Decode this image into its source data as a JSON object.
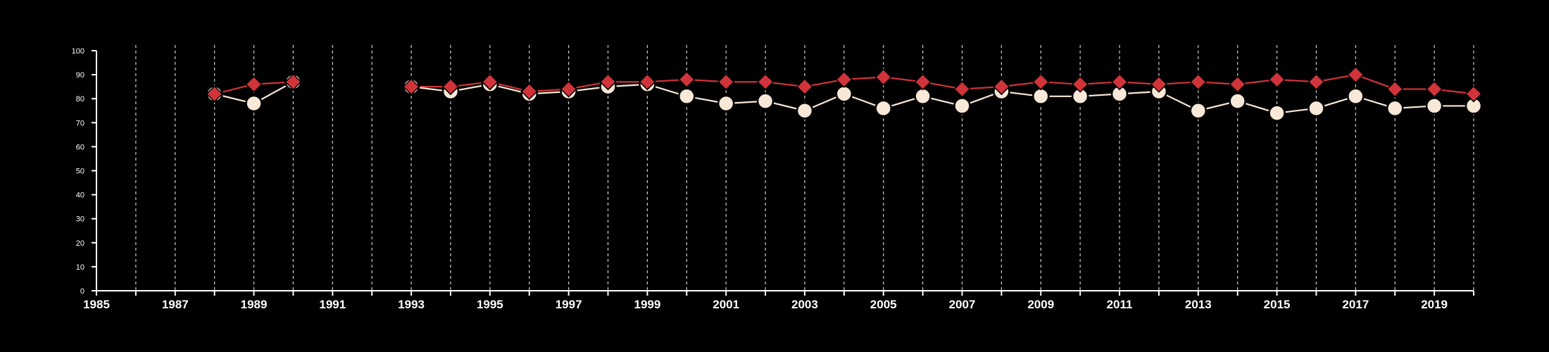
{
  "chart_data": {
    "type": "line",
    "title": "",
    "xlabel": "",
    "ylabel": "",
    "xlim": [
      1985,
      2020
    ],
    "ylim": [
      0,
      100
    ],
    "yticks": [
      0,
      10,
      20,
      30,
      40,
      50,
      60,
      70,
      80,
      90,
      100
    ],
    "xticks_labeled": [
      1985,
      1987,
      1989,
      1991,
      1993,
      1995,
      1997,
      1999,
      2001,
      2003,
      2005,
      2007,
      2009,
      2011,
      2013,
      2015,
      2017,
      2019
    ],
    "vertical_grid": "dashed",
    "x": [
      1988,
      1989,
      1990,
      1993,
      1994,
      1995,
      1996,
      1997,
      1998,
      1999,
      2000,
      2001,
      2002,
      2003,
      2004,
      2005,
      2006,
      2007,
      2008,
      2009,
      2010,
      2011,
      2012,
      2013,
      2014,
      2015,
      2016,
      2017,
      2018,
      2019,
      2020
    ],
    "series": [
      {
        "color": "#d0343a",
        "marker": "diamond",
        "values": [
          82,
          86,
          87,
          85,
          85,
          87,
          83,
          84,
          87,
          87,
          88,
          87,
          87,
          85,
          88,
          89,
          87,
          84,
          85,
          87,
          86,
          87,
          86,
          87,
          86,
          88,
          87,
          90,
          84,
          84,
          82
        ]
      },
      {
        "color": "#f7e8d8",
        "marker": "circle",
        "values": [
          82,
          78,
          87,
          85,
          83,
          86,
          82,
          83,
          85,
          86,
          81,
          78,
          79,
          75,
          82,
          76,
          81,
          77,
          83,
          81,
          81,
          82,
          83,
          75,
          79,
          74,
          76,
          81,
          76,
          77,
          77
        ]
      }
    ]
  }
}
